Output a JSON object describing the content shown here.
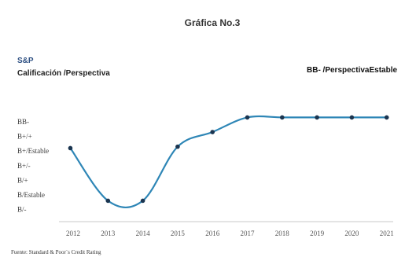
{
  "colors": {
    "line": "#2e86b6",
    "marker": "#1b3550",
    "agency": "#2d4f82",
    "axis": "#c8c8c8"
  },
  "chart_data": {
    "type": "line",
    "title": "Gráfica No.3",
    "agency_label": "S&P",
    "ylabel": "Calificación /Perspectiva",
    "annotation": "BB- /PerspectivaEstable",
    "source": "Fuente: Standard & Poor´s Credit Rating",
    "y_levels": [
      {
        "value": 7,
        "label": "BB-"
      },
      {
        "value": 6,
        "label": "B+/+"
      },
      {
        "value": 5,
        "label": "B+/Estable"
      },
      {
        "value": 4,
        "label": "B+/-"
      },
      {
        "value": 3,
        "label": "B/+"
      },
      {
        "value": 2,
        "label": "B/Estable"
      },
      {
        "value": 1,
        "label": "B/-"
      }
    ],
    "categories": [
      "2012",
      "2013",
      "2014",
      "2015",
      "2016",
      "2017",
      "2018",
      "2019",
      "2020",
      "2021"
    ],
    "series": [
      {
        "points": [
          {
            "x": 2011.92,
            "y": 5.2
          },
          {
            "x": 2013,
            "y": 1.6
          },
          {
            "x": 2014,
            "y": 1.6
          },
          {
            "x": 2015,
            "y": 5.3
          },
          {
            "x": 2016,
            "y": 6.3
          },
          {
            "x": 2017,
            "y": 7.3
          },
          {
            "x": 2018,
            "y": 7.3
          },
          {
            "x": 2019,
            "y": 7.3
          },
          {
            "x": 2020,
            "y": 7.3
          },
          {
            "x": 2021,
            "y": 7.3
          }
        ]
      }
    ],
    "grid": false
  }
}
